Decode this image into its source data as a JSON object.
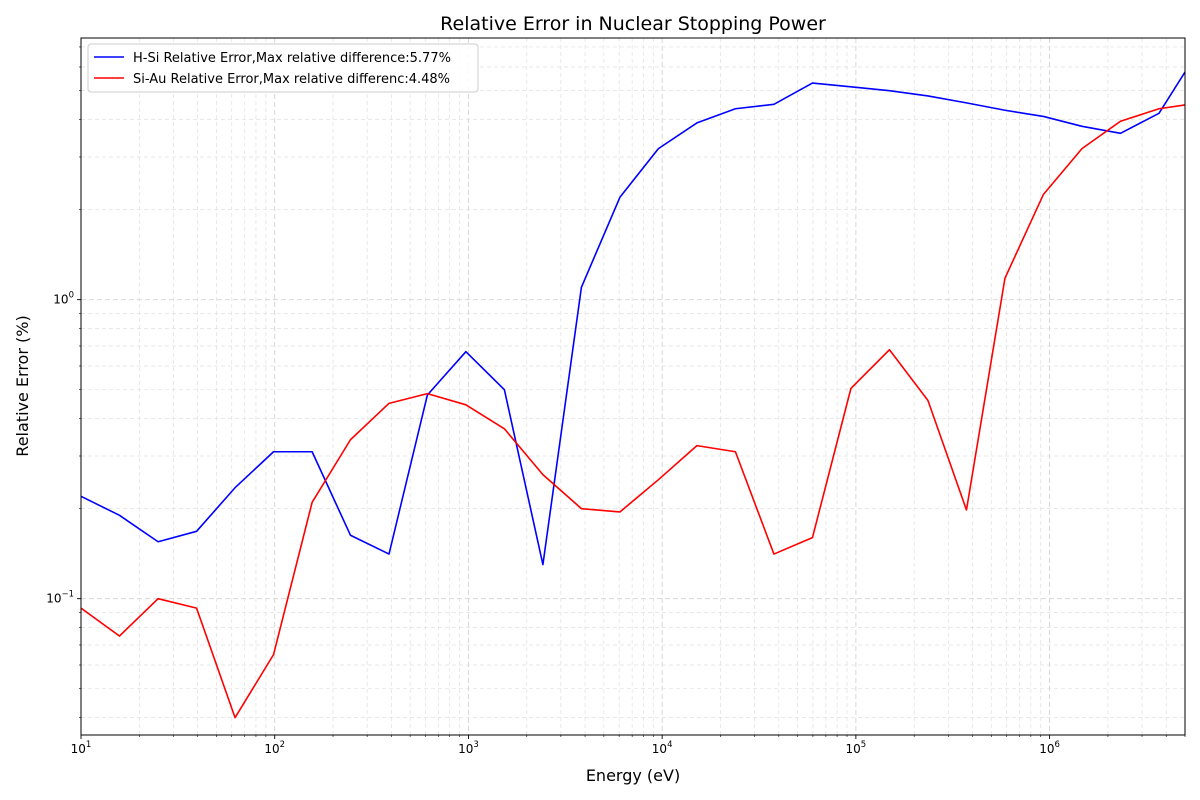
{
  "chart_data": {
    "type": "line",
    "title": "Relative Error in Nuclear Stopping Power",
    "xlabel": "Energy (eV)",
    "ylabel": "Relative Error (%)",
    "x_scale": "log",
    "y_scale": "log",
    "xlim": [
      10,
      5000000
    ],
    "ylim": [
      0.035,
      7.5
    ],
    "x_ticks": [
      {
        "base": "10",
        "exp": "1",
        "value": 10
      },
      {
        "base": "10",
        "exp": "2",
        "value": 100
      },
      {
        "base": "10",
        "exp": "3",
        "value": 1000
      },
      {
        "base": "10",
        "exp": "4",
        "value": 10000
      },
      {
        "base": "10",
        "exp": "5",
        "value": 100000
      },
      {
        "base": "10",
        "exp": "6",
        "value": 1000000
      }
    ],
    "y_ticks": [
      {
        "base": "10",
        "exp": "−1",
        "value": 0.1
      },
      {
        "base": "10",
        "exp": "0",
        "value": 1
      }
    ],
    "grid": true,
    "grid_style": "dashed, major and minor",
    "legend_position": "upper-left",
    "x": [
      10,
      15.8,
      25,
      39.5,
      62.4,
      98.6,
      156,
      246,
      389,
      614,
      970,
      1533,
      2423,
      3830,
      6052,
      9565,
      15117,
      23890,
      37757,
      59670,
      94305,
      149040,
      235550,
      372260,
      588320,
      929790,
      1469400,
      2322300,
      3670200,
      5000000
    ],
    "series": [
      {
        "name": "H-Si Relative Error,Max relative difference:5.77%",
        "color": "#0000ff",
        "values": [
          0.22,
          0.19,
          0.155,
          0.168,
          0.235,
          0.31,
          0.31,
          0.163,
          0.141,
          0.48,
          0.67,
          0.5,
          0.13,
          1.1,
          2.2,
          3.2,
          3.9,
          4.35,
          4.5,
          5.3,
          5.15,
          5.0,
          4.8,
          4.55,
          4.3,
          4.1,
          3.8,
          3.6,
          4.2,
          5.77
        ]
      },
      {
        "name": "Si-Au Relative Error,Max relative differenc:4.48%",
        "color": "#ff0000",
        "values": [
          0.093,
          0.075,
          0.1,
          0.093,
          0.04,
          0.065,
          0.21,
          0.34,
          0.45,
          0.485,
          0.445,
          0.37,
          0.26,
          0.2,
          0.195,
          0.25,
          0.325,
          0.31,
          0.141,
          0.16,
          0.505,
          0.68,
          0.46,
          0.198,
          1.18,
          2.25,
          3.2,
          3.95,
          4.35,
          4.48
        ]
      }
    ]
  }
}
